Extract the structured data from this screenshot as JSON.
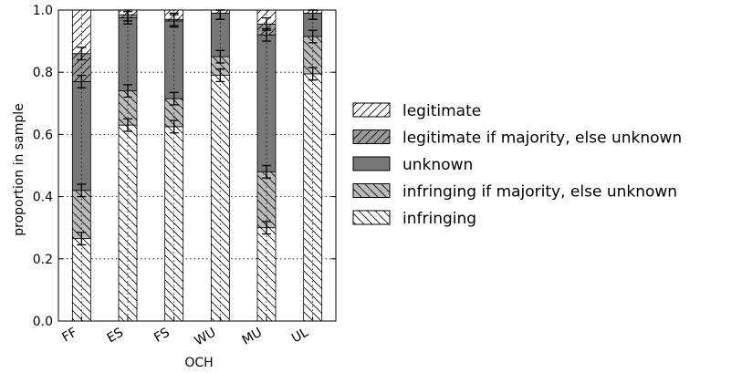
{
  "chart_data": {
    "type": "bar",
    "stacked": true,
    "xlabel": "OCH",
    "ylabel": "proportion in sample",
    "ylim": [
      0,
      1.0
    ],
    "yticks": [
      "0.0",
      "0.2",
      "0.4",
      "0.6",
      "0.8",
      "1.0"
    ],
    "grid": true,
    "legend_position": "right",
    "categories": [
      "FF",
      "ES",
      "FS",
      "WU",
      "MU",
      "UL"
    ],
    "series": [
      {
        "name": "infringing",
        "values": [
          0.265,
          0.63,
          0.625,
          0.79,
          0.3,
          0.795
        ],
        "color": "#ffffff",
        "pattern": "backslash"
      },
      {
        "name": "infringing if majority, else unknown",
        "values": [
          0.155,
          0.11,
          0.09,
          0.06,
          0.18,
          0.12
        ],
        "color": "#bbbbbb",
        "pattern": "backslash"
      },
      {
        "name": "unknown",
        "values": [
          0.35,
          0.235,
          0.25,
          0.14,
          0.44,
          0.075
        ],
        "color": "#777777",
        "pattern": "none"
      },
      {
        "name": "legitimate if majority, else unknown",
        "values": [
          0.09,
          0.01,
          0.005,
          0.0,
          0.035,
          0.0
        ],
        "color": "#999999",
        "pattern": "slash"
      },
      {
        "name": "legitimate",
        "values": [
          0.14,
          0.015,
          0.03,
          0.01,
          0.045,
          0.01
        ],
        "color": "#ffffff",
        "pattern": "slash"
      }
    ],
    "error_bars": {
      "boundaries": [
        [
          0.265,
          0.42,
          0.77,
          0.86
        ],
        [
          0.63,
          0.74,
          0.975,
          0.985
        ],
        [
          0.625,
          0.715,
          0.965,
          0.97
        ],
        [
          0.79,
          0.85,
          0.99,
          0.99
        ],
        [
          0.3,
          0.48,
          0.92,
          0.955
        ],
        [
          0.795,
          0.915,
          0.99,
          0.99
        ]
      ],
      "half_width": 0.02
    }
  }
}
